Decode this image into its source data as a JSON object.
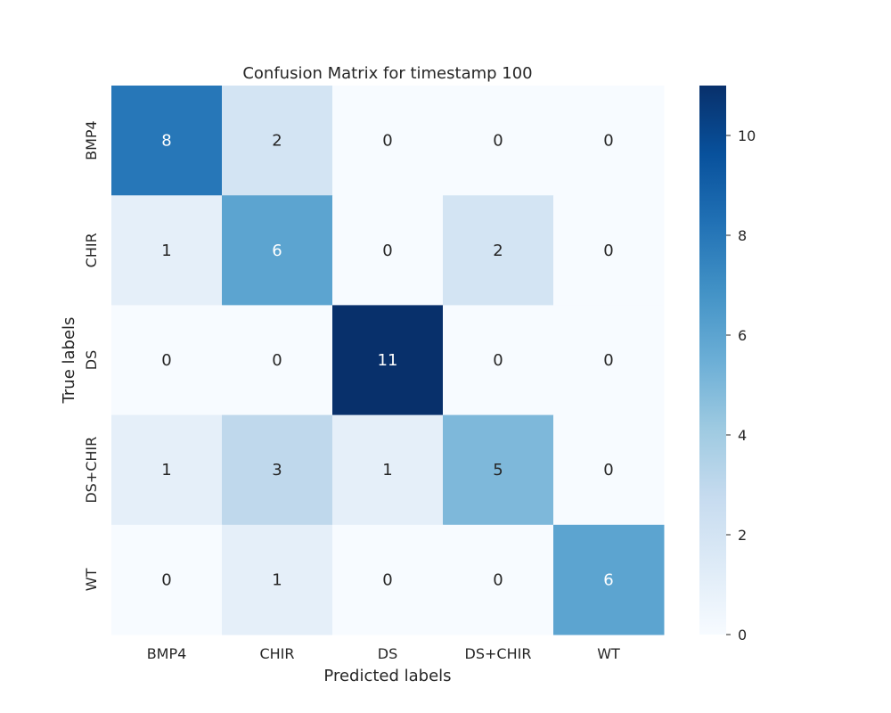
{
  "chart_data": {
    "type": "heatmap",
    "title": "Confusion Matrix for timestamp 100",
    "xlabel": "Predicted labels",
    "ylabel": "True labels",
    "x_categories": [
      "BMP4",
      "CHIR",
      "DS",
      "DS+CHIR",
      "WT"
    ],
    "y_categories": [
      "BMP4",
      "CHIR",
      "DS",
      "DS+CHIR",
      "WT"
    ],
    "values": [
      [
        8,
        2,
        0,
        0,
        0
      ],
      [
        1,
        6,
        0,
        2,
        0
      ],
      [
        0,
        0,
        11,
        0,
        0
      ],
      [
        1,
        3,
        1,
        5,
        0
      ],
      [
        0,
        1,
        0,
        0,
        6
      ]
    ],
    "colorscale": "Blues",
    "vmin": 0,
    "vmax": 11,
    "colorbar_ticks": [
      "0",
      "2",
      "4",
      "6",
      "8",
      "10"
    ],
    "grid": false
  }
}
